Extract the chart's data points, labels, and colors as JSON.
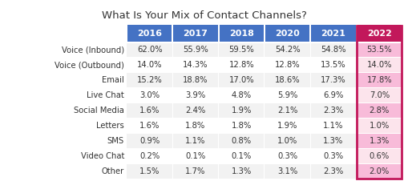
{
  "title": "What Is Your Mix of Contact Channels?",
  "columns": [
    "2016",
    "2017",
    "2018",
    "2020",
    "2021",
    "2022"
  ],
  "rows": [
    "Voice (Inbound)",
    "Voice (Outbound)",
    "Email",
    "Live Chat",
    "Social Media",
    "Letters",
    "SMS",
    "Video Chat",
    "Other"
  ],
  "data": [
    [
      "62.0%",
      "55.9%",
      "59.5%",
      "54.2%",
      "54.8%",
      "53.5%"
    ],
    [
      "14.0%",
      "14.3%",
      "12.8%",
      "12.8%",
      "13.5%",
      "14.0%"
    ],
    [
      "15.2%",
      "18.8%",
      "17.0%",
      "18.6%",
      "17.3%",
      "17.8%"
    ],
    [
      "3.0%",
      "3.9%",
      "4.8%",
      "5.9%",
      "6.9%",
      "7.0%"
    ],
    [
      "1.6%",
      "2.4%",
      "1.9%",
      "2.1%",
      "2.3%",
      "2.8%"
    ],
    [
      "1.6%",
      "1.8%",
      "1.8%",
      "1.9%",
      "1.1%",
      "1.0%"
    ],
    [
      "0.9%",
      "1.1%",
      "0.8%",
      "1.0%",
      "1.3%",
      "1.3%"
    ],
    [
      "0.2%",
      "0.1%",
      "0.1%",
      "0.3%",
      "0.3%",
      "0.6%"
    ],
    [
      "1.5%",
      "1.7%",
      "1.3%",
      "3.1%",
      "2.3%",
      "2.0%"
    ]
  ],
  "header_bg_colors": [
    "#4472C4",
    "#4472C4",
    "#4472C4",
    "#4472C4",
    "#4472C4",
    "#C2185B"
  ],
  "header_text_color": "#FFFFFF",
  "row_bg_even": "#F2F2F2",
  "row_bg_odd": "#FFFFFF",
  "last_col_bg_even": "#F8BBD9",
  "last_col_bg_odd": "#FCE4EC",
  "last_col_border_color": "#C2185B",
  "title_fontsize": 9.5,
  "cell_fontsize": 7.2,
  "header_fontsize": 8.0,
  "row_label_fontsize": 7.2,
  "text_color": "#333333",
  "background_color": "#FFFFFF"
}
